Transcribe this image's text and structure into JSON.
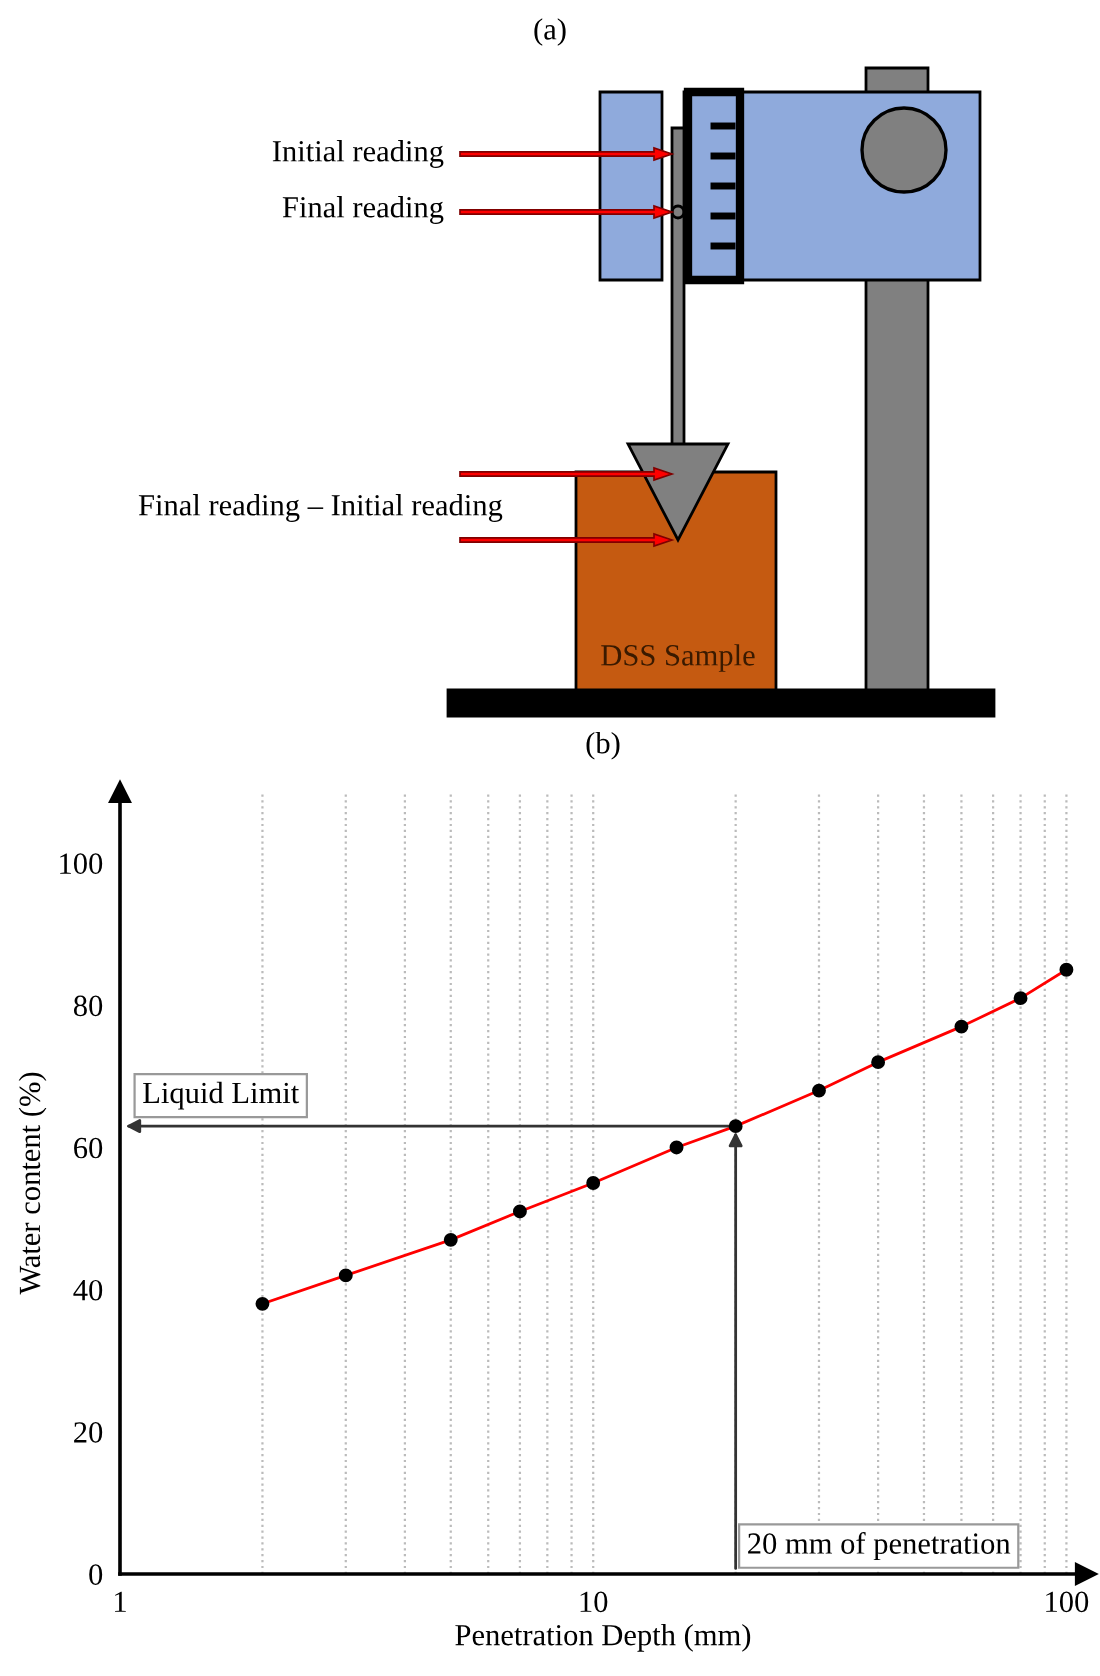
{
  "chart_data": [
    {
      "type": "other",
      "title": "(a)",
      "annotations": [
        "Initial reading",
        "Final reading",
        "Final reading – Initial reading",
        "DSS Sample"
      ]
    },
    {
      "type": "line",
      "title": "(b)",
      "xlabel": "Penetration Depth (mm)",
      "ylabel": "Water content (%)",
      "log": "x",
      "x": [
        2,
        3,
        5,
        7,
        10,
        15,
        20,
        30,
        40,
        60,
        80,
        100
      ],
      "series": [
        {
          "color": "#ff0000",
          "values": [
            38,
            42,
            47,
            51,
            55,
            60,
            63,
            68,
            72,
            77,
            81,
            85
          ]
        }
      ],
      "marker": "circle",
      "line_style": "solid",
      "grid": "x",
      "xlim": [
        1,
        110
      ],
      "ylim": [
        0,
        110
      ],
      "xticks": [
        1,
        {
          "value": 2,
          "label": null
        },
        {
          "value": 3,
          "label": null
        },
        {
          "value": 4,
          "label": null
        },
        {
          "value": 5,
          "label": null
        },
        {
          "value": 6,
          "label": null
        },
        {
          "value": 7,
          "label": null
        },
        {
          "value": 8,
          "label": null
        },
        {
          "value": 9,
          "label": null
        },
        10,
        {
          "value": 20,
          "label": null
        },
        {
          "value": 30,
          "label": null
        },
        {
          "value": 40,
          "label": null
        },
        {
          "value": 50,
          "label": null
        },
        {
          "value": 60,
          "label": null
        },
        {
          "value": 70,
          "label": null
        },
        {
          "value": 80,
          "label": null
        },
        {
          "value": 90,
          "label": null
        },
        100
      ],
      "yticks": [
        0,
        20,
        40,
        60,
        80,
        100
      ],
      "annotations": [
        "Liquid Limit",
        {
          "text": "20 mm of penetration",
          "x": 20,
          "y": 63
        }
      ]
    }
  ]
}
